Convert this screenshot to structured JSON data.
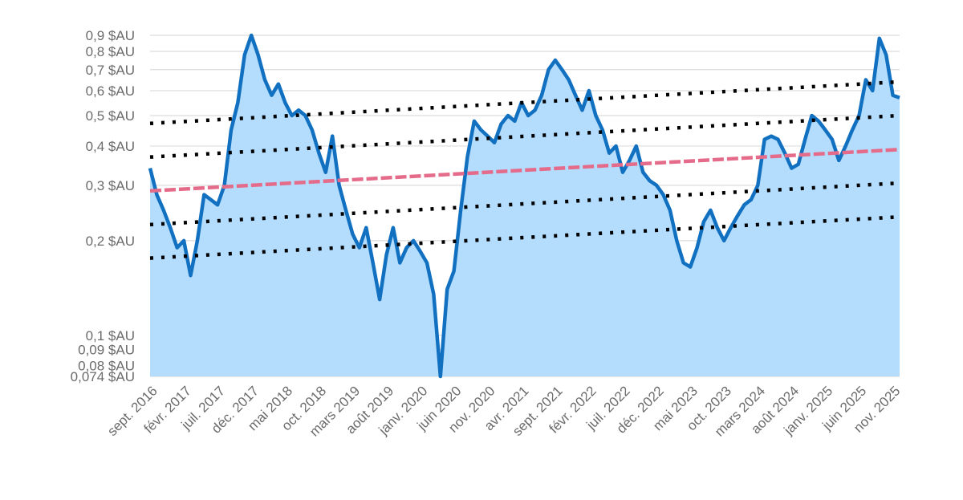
{
  "chart_data": {
    "type": "area",
    "title": "",
    "xlabel": "",
    "ylabel": "",
    "y_scale": "log",
    "ylim": [
      0.074,
      0.9
    ],
    "xlim": [
      "2016-09",
      "2025-12"
    ],
    "grid": "horizontal",
    "legend": "none",
    "y_ticks": [
      {
        "value": 0.9,
        "label": "0,9 $AU"
      },
      {
        "value": 0.8,
        "label": "0,8 $AU"
      },
      {
        "value": 0.7,
        "label": "0,7 $AU"
      },
      {
        "value": 0.6,
        "label": "0,6 $AU"
      },
      {
        "value": 0.5,
        "label": "0,5 $AU"
      },
      {
        "value": 0.4,
        "label": "0,4 $AU"
      },
      {
        "value": 0.3,
        "label": "0,3 $AU"
      },
      {
        "value": 0.2,
        "label": "0,2 $AU"
      },
      {
        "value": 0.1,
        "label": "0,1 $AU"
      },
      {
        "value": 0.09,
        "label": "0,09 $AU"
      },
      {
        "value": 0.08,
        "label": "0,08 $AU"
      },
      {
        "value": 0.074,
        "label": "0,074 $AU"
      }
    ],
    "x_ticks": [
      {
        "x": "2016-09",
        "label": "sept. 2016"
      },
      {
        "x": "2017-02",
        "label": "févr. 2017"
      },
      {
        "x": "2017-07",
        "label": "juil. 2017"
      },
      {
        "x": "2017-12",
        "label": "déc. 2017"
      },
      {
        "x": "2018-05",
        "label": "mai 2018"
      },
      {
        "x": "2018-10",
        "label": "oct. 2018"
      },
      {
        "x": "2019-03",
        "label": "mars 2019"
      },
      {
        "x": "2019-08",
        "label": "août 2019"
      },
      {
        "x": "2020-01",
        "label": "janv. 2020"
      },
      {
        "x": "2020-06",
        "label": "juin 2020"
      },
      {
        "x": "2020-11",
        "label": "nov. 2020"
      },
      {
        "x": "2021-04",
        "label": "avr. 2021"
      },
      {
        "x": "2021-09",
        "label": "sept. 2021"
      },
      {
        "x": "2022-02",
        "label": "févr. 2022"
      },
      {
        "x": "2022-07",
        "label": "juil. 2022"
      },
      {
        "x": "2022-12",
        "label": "déc. 2022"
      },
      {
        "x": "2023-05",
        "label": "mai 2023"
      },
      {
        "x": "2023-10",
        "label": "oct. 2023"
      },
      {
        "x": "2024-03",
        "label": "mars 2024"
      },
      {
        "x": "2024-08",
        "label": "août 2024"
      },
      {
        "x": "2025-01",
        "label": "janv. 2025"
      },
      {
        "x": "2025-06",
        "label": "juin 2025"
      },
      {
        "x": "2025-11",
        "label": "nov. 2025"
      }
    ],
    "series": [
      {
        "style": "area",
        "color": "#1270c0",
        "fill": "#b3dcfd",
        "points": [
          [
            "2016-09",
            0.34
          ],
          [
            "2016-10",
            0.28
          ],
          [
            "2016-11",
            0.25
          ],
          [
            "2016-12",
            0.22
          ],
          [
            "2017-01",
            0.19
          ],
          [
            "2017-02",
            0.2
          ],
          [
            "2017-03",
            0.155
          ],
          [
            "2017-04",
            0.2
          ],
          [
            "2017-05",
            0.28
          ],
          [
            "2017-06",
            0.27
          ],
          [
            "2017-07",
            0.26
          ],
          [
            "2017-08",
            0.3
          ],
          [
            "2017-09",
            0.45
          ],
          [
            "2017-10",
            0.55
          ],
          [
            "2017-11",
            0.78
          ],
          [
            "2017-12",
            0.9
          ],
          [
            "2018-01",
            0.78
          ],
          [
            "2018-02",
            0.65
          ],
          [
            "2018-03",
            0.58
          ],
          [
            "2018-04",
            0.63
          ],
          [
            "2018-05",
            0.55
          ],
          [
            "2018-06",
            0.5
          ],
          [
            "2018-07",
            0.52
          ],
          [
            "2018-08",
            0.5
          ],
          [
            "2018-09",
            0.45
          ],
          [
            "2018-10",
            0.38
          ],
          [
            "2018-11",
            0.33
          ],
          [
            "2018-12",
            0.43
          ],
          [
            "2019-01",
            0.3
          ],
          [
            "2019-02",
            0.25
          ],
          [
            "2019-03",
            0.21
          ],
          [
            "2019-04",
            0.19
          ],
          [
            "2019-05",
            0.22
          ],
          [
            "2019-06",
            0.17
          ],
          [
            "2019-07",
            0.13
          ],
          [
            "2019-08",
            0.18
          ],
          [
            "2019-09",
            0.22
          ],
          [
            "2019-10",
            0.17
          ],
          [
            "2019-11",
            0.19
          ],
          [
            "2019-12",
            0.2
          ],
          [
            "2020-01",
            0.185
          ],
          [
            "2020-02",
            0.17
          ],
          [
            "2020-03",
            0.135
          ],
          [
            "2020-04",
            0.074
          ],
          [
            "2020-05",
            0.14
          ],
          [
            "2020-06",
            0.16
          ],
          [
            "2020-07",
            0.25
          ],
          [
            "2020-08",
            0.37
          ],
          [
            "2020-09",
            0.48
          ],
          [
            "2020-10",
            0.45
          ],
          [
            "2020-11",
            0.43
          ],
          [
            "2020-12",
            0.41
          ],
          [
            "2021-01",
            0.47
          ],
          [
            "2021-02",
            0.5
          ],
          [
            "2021-03",
            0.48
          ],
          [
            "2021-04",
            0.55
          ],
          [
            "2021-05",
            0.5
          ],
          [
            "2021-06",
            0.52
          ],
          [
            "2021-07",
            0.58
          ],
          [
            "2021-08",
            0.7
          ],
          [
            "2021-09",
            0.75
          ],
          [
            "2021-10",
            0.7
          ],
          [
            "2021-11",
            0.65
          ],
          [
            "2021-12",
            0.58
          ],
          [
            "2022-01",
            0.52
          ],
          [
            "2022-02",
            0.6
          ],
          [
            "2022-03",
            0.5
          ],
          [
            "2022-04",
            0.45
          ],
          [
            "2022-05",
            0.38
          ],
          [
            "2022-06",
            0.4
          ],
          [
            "2022-07",
            0.33
          ],
          [
            "2022-08",
            0.36
          ],
          [
            "2022-09",
            0.4
          ],
          [
            "2022-10",
            0.33
          ],
          [
            "2022-11",
            0.31
          ],
          [
            "2022-12",
            0.3
          ],
          [
            "2023-01",
            0.28
          ],
          [
            "2023-02",
            0.25
          ],
          [
            "2023-03",
            0.2
          ],
          [
            "2023-04",
            0.17
          ],
          [
            "2023-05",
            0.165
          ],
          [
            "2023-06",
            0.19
          ],
          [
            "2023-07",
            0.23
          ],
          [
            "2023-08",
            0.25
          ],
          [
            "2023-09",
            0.22
          ],
          [
            "2023-10",
            0.2
          ],
          [
            "2023-11",
            0.22
          ],
          [
            "2023-12",
            0.24
          ],
          [
            "2024-01",
            0.26
          ],
          [
            "2024-02",
            0.27
          ],
          [
            "2024-03",
            0.3
          ],
          [
            "2024-04",
            0.42
          ],
          [
            "2024-05",
            0.43
          ],
          [
            "2024-06",
            0.42
          ],
          [
            "2024-07",
            0.38
          ],
          [
            "2024-08",
            0.34
          ],
          [
            "2024-09",
            0.35
          ],
          [
            "2024-10",
            0.42
          ],
          [
            "2024-11",
            0.5
          ],
          [
            "2024-12",
            0.48
          ],
          [
            "2025-01",
            0.45
          ],
          [
            "2025-02",
            0.42
          ],
          [
            "2025-03",
            0.36
          ],
          [
            "2025-04",
            0.4
          ],
          [
            "2025-05",
            0.45
          ],
          [
            "2025-06",
            0.5
          ],
          [
            "2025-07",
            0.65
          ],
          [
            "2025-08",
            0.6
          ],
          [
            "2025-09",
            0.88
          ],
          [
            "2025-10",
            0.78
          ],
          [
            "2025-11",
            0.58
          ],
          [
            "2025-12",
            0.57
          ]
        ]
      },
      {
        "style": "dashed-trend",
        "color": "#e56b8a",
        "points": [
          [
            "2016-09",
            0.288
          ],
          [
            "2025-12",
            0.39
          ]
        ]
      },
      {
        "style": "dotted-channel",
        "color": "#000000",
        "points": [
          [
            "2016-09",
            0.472
          ],
          [
            "2025-12",
            0.64
          ]
        ]
      },
      {
        "style": "dotted-channel",
        "color": "#000000",
        "points": [
          [
            "2016-09",
            0.369
          ],
          [
            "2025-12",
            0.5
          ]
        ]
      },
      {
        "style": "dotted-channel",
        "color": "#000000",
        "points": [
          [
            "2016-09",
            0.225
          ],
          [
            "2025-12",
            0.305
          ]
        ]
      },
      {
        "style": "dotted-channel",
        "color": "#000000",
        "points": [
          [
            "2016-09",
            0.176
          ],
          [
            "2025-12",
            0.238
          ]
        ]
      }
    ]
  }
}
